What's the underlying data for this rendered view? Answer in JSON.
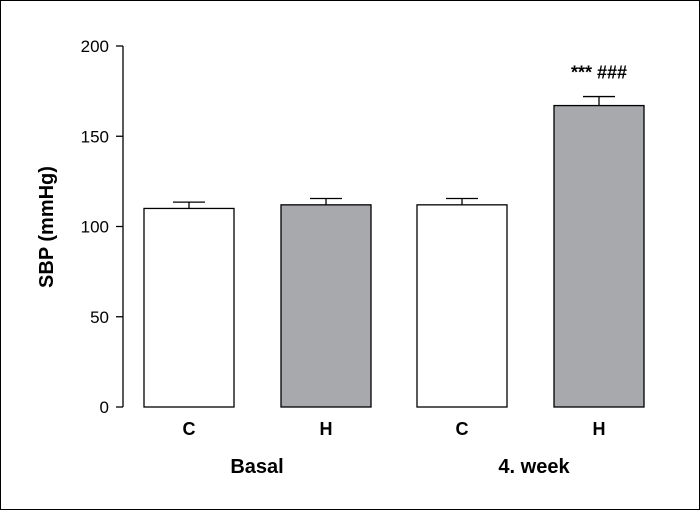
{
  "chart_data": {
    "type": "bar",
    "ylabel": "SBP (mmHg)",
    "xlabel": "",
    "ylim": [
      0,
      200
    ],
    "yticks": [
      0,
      50,
      100,
      150,
      200
    ],
    "grid": false,
    "categories": [
      "C",
      "H",
      "C",
      "H"
    ],
    "groups": [
      {
        "label": "Basal",
        "categories": [
          "C",
          "H"
        ]
      },
      {
        "label": "4. week",
        "categories": [
          "C",
          "H"
        ]
      }
    ],
    "bars": [
      {
        "group": "Basal",
        "category": "C",
        "value": 110,
        "error": 3.5,
        "color": "#ffffff",
        "annotation": ""
      },
      {
        "group": "Basal",
        "category": "H",
        "value": 112,
        "error": 3.5,
        "color": "#a7a9ac",
        "annotation": ""
      },
      {
        "group": "4. week",
        "category": "C",
        "value": 112,
        "error": 3.5,
        "color": "#ffffff",
        "annotation": ""
      },
      {
        "group": "4. week",
        "category": "H",
        "value": 167,
        "error": 5,
        "color": "#a7a9ac",
        "annotation": "*** ###"
      }
    ]
  }
}
